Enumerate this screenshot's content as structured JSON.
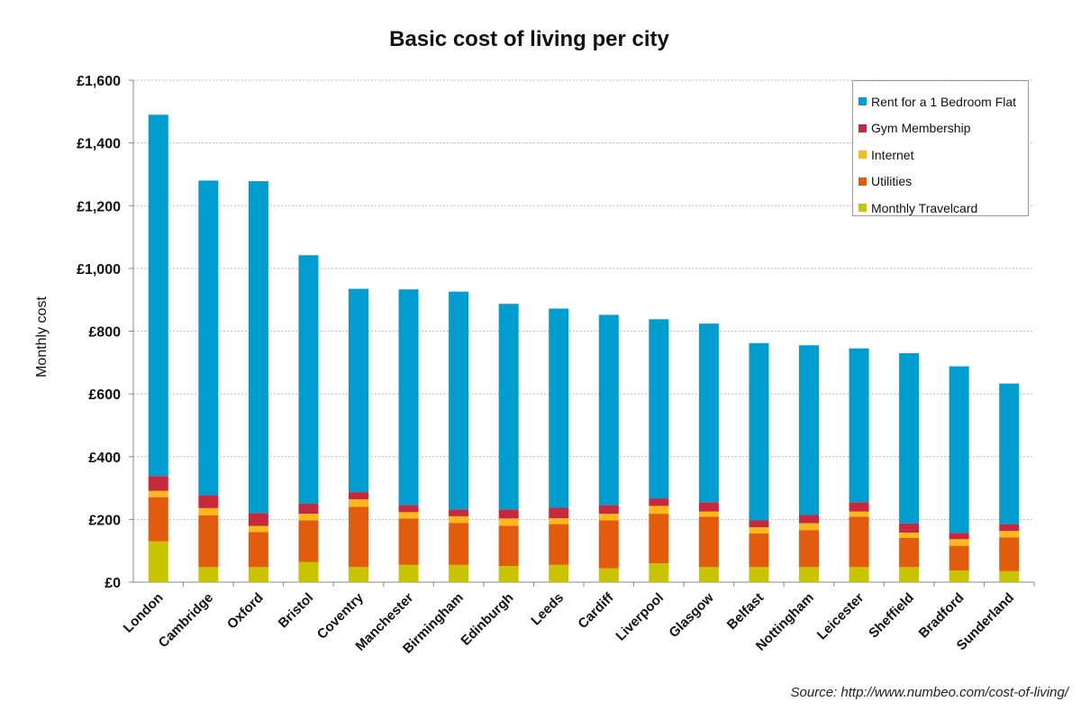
{
  "chart_data": {
    "type": "bar",
    "stacked": true,
    "title": "Basic cost of living per city",
    "xlabel": "",
    "ylabel": "Monthly cost",
    "ylim": [
      0,
      1600
    ],
    "yticks": [
      0,
      200,
      400,
      600,
      800,
      1000,
      1200,
      1400,
      1600
    ],
    "ytick_labels": [
      "£0",
      "£200",
      "£400",
      "£600",
      "£800",
      "£1,000",
      "£1,200",
      "£1,400",
      "£1,600"
    ],
    "grid": true,
    "legend_position": "top-right",
    "categories": [
      "London",
      "Cambridge",
      "Oxford",
      "Bristol",
      "Coventry",
      "Manchester",
      "Birmingham",
      "Edinburgh",
      "Leeds",
      "Cardiff",
      "Liverpool",
      "Glasgow",
      "Belfast",
      "Nottingham",
      "Leicester",
      "Sheffield",
      "Bradford",
      "Sunderland"
    ],
    "series": [
      {
        "name": "Monthly Travelcard",
        "color": "#c8c400",
        "values": [
          130,
          48,
          48,
          64,
          48,
          55,
          55,
          51,
          55,
          44,
          60,
          48,
          48,
          48,
          48,
          48,
          37,
          35
        ]
      },
      {
        "name": "Utilities",
        "color": "#e35c0e",
        "values": [
          141,
          165,
          112,
          133,
          192,
          148,
          134,
          129,
          130,
          153,
          158,
          161,
          107,
          118,
          161,
          93,
          79,
          108
        ]
      },
      {
        "name": "Internet",
        "color": "#ffb81c",
        "values": [
          20,
          23,
          19,
          21,
          24,
          20,
          21,
          23,
          19,
          21,
          25,
          16,
          20,
          22,
          16,
          17,
          21,
          20
        ]
      },
      {
        "name": "Gym Membership",
        "color": "#c8283c",
        "values": [
          47,
          41,
          41,
          32,
          23,
          23,
          22,
          29,
          33,
          28,
          24,
          30,
          23,
          26,
          30,
          29,
          20,
          22
        ]
      },
      {
        "name": "Rent for a 1 Bedroom Flat",
        "color": "#009dd0",
        "values": [
          1152,
          1003,
          1058,
          792,
          648,
          687,
          694,
          655,
          635,
          606,
          571,
          569,
          564,
          541,
          490,
          543,
          531,
          448
        ]
      }
    ],
    "legend_order": [
      "Rent for a 1 Bedroom Flat",
      "Gym Membership",
      "Internet",
      "Utilities",
      "Monthly Travelcard"
    ],
    "source": "Source: http://www.numbeo.com/cost-of-living/"
  }
}
